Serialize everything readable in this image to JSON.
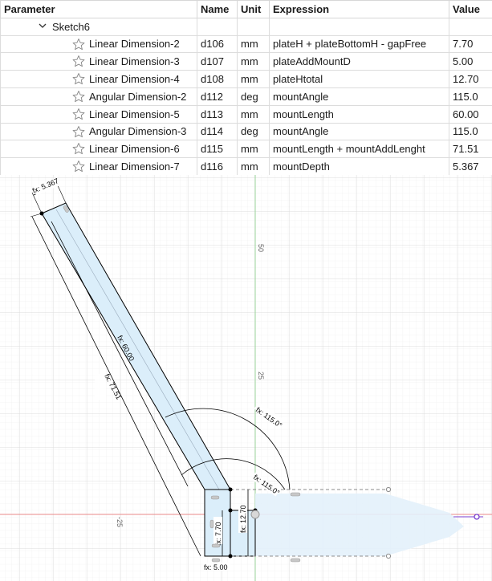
{
  "table": {
    "headers": {
      "parameter": "Parameter",
      "name": "Name",
      "unit": "Unit",
      "expression": "Expression",
      "value": "Value"
    },
    "group": {
      "label": "Sketch6"
    },
    "rows": [
      {
        "parameter": "Linear Dimension-2",
        "name": "d106",
        "unit": "mm",
        "expression": "plateH + plateBottomH - gapFree",
        "value": "7.70"
      },
      {
        "parameter": "Linear Dimension-3",
        "name": "d107",
        "unit": "mm",
        "expression": "plateAddMountD",
        "value": "5.00"
      },
      {
        "parameter": "Linear Dimension-4",
        "name": "d108",
        "unit": "mm",
        "expression": "plateHtotal",
        "value": "12.70"
      },
      {
        "parameter": "Angular Dimension-2",
        "name": "d112",
        "unit": "deg",
        "expression": "mountAngle",
        "value": "115.0"
      },
      {
        "parameter": "Linear Dimension-5",
        "name": "d113",
        "unit": "mm",
        "expression": "mountLength",
        "value": "60.00"
      },
      {
        "parameter": "Angular Dimension-3",
        "name": "d114",
        "unit": "deg",
        "expression": "mountAngle",
        "value": "115.0"
      },
      {
        "parameter": "Linear Dimension-6",
        "name": "d115",
        "unit": "mm",
        "expression": "mountLength + mountAddLenght",
        "value": "71.51"
      },
      {
        "parameter": "Linear Dimension-7",
        "name": "d116",
        "unit": "mm",
        "expression": "mountDepth",
        "value": "5.367"
      }
    ]
  },
  "sketch": {
    "axis_labels": {
      "y50": "50",
      "y25": "25",
      "xneg25": "-25"
    },
    "dimension_labels": {
      "d116": "fx: 5.367",
      "d113": "fx: 60.00",
      "d115": "fx: 71.51",
      "d112": "fx: 115.0°",
      "d114": "fx: 115.0°",
      "d108": "fx: 12.70",
      "d106": "fx: 7.70",
      "d107": "fx: 5.00"
    },
    "colors": {
      "grid": "#e6e6e6",
      "axis_y": "#9bd49b",
      "axis_x": "#e88a8a",
      "profile_fill": "#dbeefa",
      "line": "#000000",
      "construction": "#8c8c8c",
      "constraint_icon": "#e07070",
      "point": "#7a3fd0"
    }
  }
}
